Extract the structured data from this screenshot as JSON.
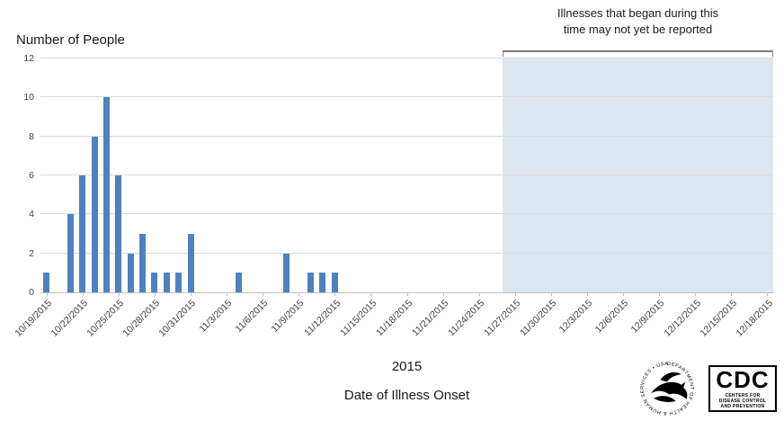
{
  "chart_data": {
    "type": "bar",
    "title": "",
    "ylabel": "Number of People",
    "xlabel_year": "2015",
    "xlabel": "Date of Illness Onset",
    "annotation_lines": [
      "Illnesses that began during this",
      "time may not yet be reported"
    ],
    "start_date": "10/19/2015",
    "end_date": "12/18/2015",
    "num_days": 61,
    "ylim": [
      0,
      12
    ],
    "y_ticks": [
      0,
      2,
      4,
      6,
      8,
      10,
      12
    ],
    "x_tick_interval_days": 3,
    "x_tick_labels": [
      "10/19/2015",
      "10/22/2015",
      "10/25/2015",
      "10/28/2015",
      "10/31/2015",
      "11/3/2015",
      "11/6/2015",
      "11/9/2015",
      "11/12/2015",
      "11/15/2015",
      "11/18/2015",
      "11/21/2015",
      "11/24/2015",
      "11/27/2015",
      "11/30/2015",
      "12/3/2015",
      "12/6/2015",
      "12/9/2015",
      "12/12/2015",
      "12/15/2015",
      "12/18/2015"
    ],
    "bars": [
      {
        "date": "10/19/2015",
        "value": 1
      },
      {
        "date": "10/21/2015",
        "value": 4
      },
      {
        "date": "10/22/2015",
        "value": 6
      },
      {
        "date": "10/23/2015",
        "value": 8
      },
      {
        "date": "10/24/2015",
        "value": 10
      },
      {
        "date": "10/25/2015",
        "value": 6
      },
      {
        "date": "10/26/2015",
        "value": 2
      },
      {
        "date": "10/27/2015",
        "value": 3
      },
      {
        "date": "10/28/2015",
        "value": 1
      },
      {
        "date": "10/29/2015",
        "value": 1
      },
      {
        "date": "10/30/2015",
        "value": 1
      },
      {
        "date": "10/31/2015",
        "value": 3
      },
      {
        "date": "11/4/2015",
        "value": 1
      },
      {
        "date": "11/8/2015",
        "value": 2
      },
      {
        "date": "11/10/2015",
        "value": 1
      },
      {
        "date": "11/11/2015",
        "value": 1
      },
      {
        "date": "11/12/2015",
        "value": 1
      }
    ],
    "shaded_region": {
      "start_date": "11/26/2015",
      "end": "chart-right-edge"
    },
    "legend": "none",
    "grid": "horizontal",
    "colors": {
      "bar": "#4f81bd",
      "shade": "#dce6f1",
      "grid": "#d9d9d9",
      "bracket": "#7f7f7f",
      "axis": "#bfbfbf",
      "text": "#1a1a1a"
    }
  },
  "footer": {
    "hhs_seal_text": "DEPARTMENT OF HEALTH & HUMAN SERVICES • USA",
    "cdc_logo": "CDC",
    "cdc_logo_subtext": "CENTERS FOR DISEASE CONTROL AND PREVENTION"
  }
}
